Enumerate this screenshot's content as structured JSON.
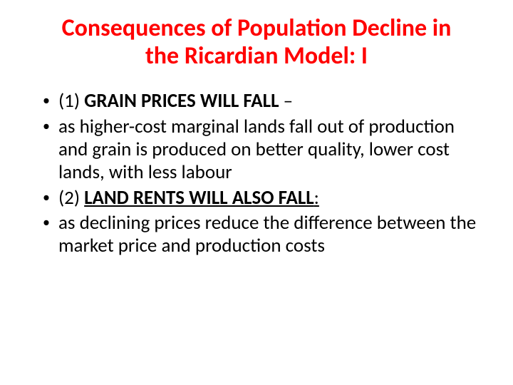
{
  "slide": {
    "title": "Consequences of Population Decline in the Ricardian Model: I",
    "title_color": "#ff0000",
    "title_fontsize": 34,
    "body_fontsize": 27,
    "body_color": "#000000",
    "background_color": "#ffffff",
    "bullets": [
      {
        "prefix": "(1) ",
        "bold_text": "GRAIN PRICES WILL FALL",
        "suffix": " –",
        "underline": false
      },
      {
        "text": "as higher-cost marginal lands fall out of production and grain is produced on better quality, lower cost lands, with less labour"
      },
      {
        "prefix": "(2) ",
        "bold_text": "LAND RENTS WILL ALSO FALL",
        "suffix": ":",
        "underline": true
      },
      {
        "text": "as declining prices reduce the difference between the market price and production costs"
      }
    ]
  }
}
